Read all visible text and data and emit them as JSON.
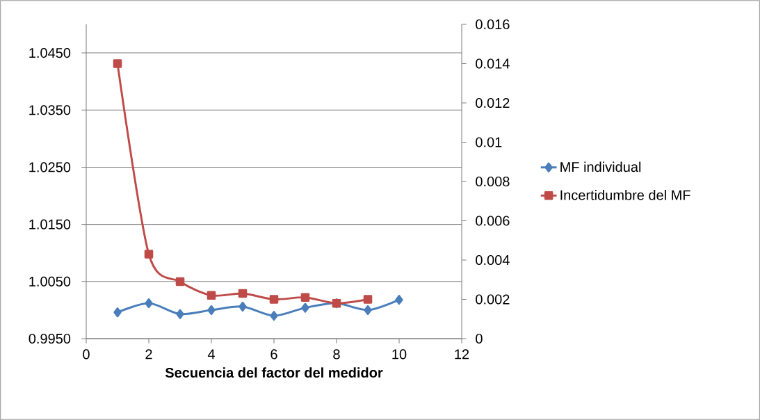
{
  "chart_data": {
    "type": "line",
    "xlabel": "Secuencia del factor del medidor",
    "x": [
      1,
      2,
      3,
      4,
      5,
      6,
      7,
      8,
      9,
      10
    ],
    "series": [
      {
        "name": "MF individual",
        "color": "#4a7ebb",
        "marker": "diamond",
        "values": [
          0.9996,
          1.0012,
          0.9993,
          1.0,
          1.0006,
          0.999,
          1.0004,
          1.0012,
          1.0,
          1.0018
        ]
      },
      {
        "name": "Incertidumbre del MF",
        "color": "#be4b48",
        "marker": "square",
        "axis": "y2",
        "x": [
          1,
          2,
          3,
          4,
          5,
          6,
          7,
          8,
          9
        ],
        "values": [
          0.014,
          0.0043,
          0.0029,
          0.0022,
          0.0023,
          0.002,
          0.0021,
          0.0018,
          0.002
        ]
      }
    ],
    "xlim": [
      0,
      12
    ],
    "xticks": [
      0,
      2,
      4,
      6,
      8,
      10,
      12
    ],
    "ylim": [
      0.995,
      1.05
    ],
    "yticks": [
      {
        "value": 0.995,
        "label": "0.9950"
      },
      {
        "value": 1.005,
        "label": "1.0050"
      },
      {
        "value": 1.015,
        "label": "1.0150"
      },
      {
        "value": 1.025,
        "label": "1.0250"
      },
      {
        "value": 1.035,
        "label": "1.0350"
      },
      {
        "value": 1.045,
        "label": "1.0450"
      }
    ],
    "y2lim": [
      0,
      0.016
    ],
    "y2ticks": [
      0,
      0.002,
      0.004,
      0.006,
      0.008,
      0.01,
      0.012,
      0.014,
      0.016
    ],
    "grid": "y",
    "legend": "right",
    "line_style": "solid"
  }
}
